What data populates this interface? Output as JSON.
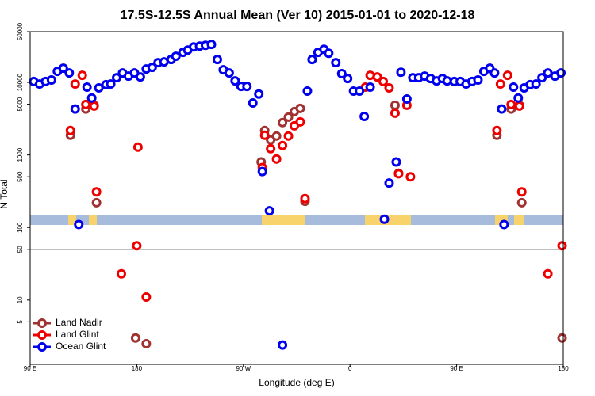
{
  "chart_data": {
    "type": "scatter",
    "title": "17.5S-12.5S Annual Mean (Ver 10)   2015-01-01 to 2020-12-18",
    "x_label": "Longitude (deg E)",
    "y_label": "N Total",
    "xlim": [
      90,
      540
    ],
    "xticks": [
      {
        "value": 90,
        "label": "90 E"
      },
      180,
      {
        "value": 270,
        "label": "90 W"
      },
      {
        "value": 360,
        "label": "0"
      },
      {
        "value": 450,
        "label": "90 E"
      },
      {
        "value": 540,
        "label": "180"
      }
    ],
    "ylim": [
      1.3,
      50000
    ],
    "y_scale": "log",
    "yticks": [
      5,
      10,
      50,
      100,
      500,
      1000,
      5000,
      10000,
      50000
    ],
    "reference_line": 50,
    "legend": "lower left",
    "series": [
      {
        "name": "Land Nadir",
        "color": "#a03232",
        "x": [
          124,
          137,
          144,
          146,
          179,
          188,
          285,
          288,
          293,
          298,
          303,
          308,
          313,
          318,
          322,
          398,
          401,
          484,
          496,
          503,
          505,
          539
        ],
        "values": [
          1870,
          4300,
          4840,
          220,
          3.0,
          2.5,
          800,
          2170,
          1610,
          1820,
          2790,
          3320,
          3960,
          4380,
          230,
          4840,
          560,
          1870,
          4300,
          4840,
          220,
          3.0
        ]
      },
      {
        "name": "Land Glint",
        "color": "#ee0000",
        "x": [
          124,
          128,
          134,
          137,
          144,
          146,
          167,
          180,
          181,
          188,
          286,
          288,
          293,
          298,
          303,
          308,
          313,
          318,
          322,
          373,
          377,
          383,
          388,
          393,
          398,
          401,
          408,
          411,
          484,
          487,
          493,
          496,
          503,
          505,
          527,
          539
        ],
        "values": [
          2170,
          9500,
          12500,
          4970,
          4720,
          310,
          23,
          56,
          1280,
          11,
          670,
          1870,
          1220,
          880,
          1350,
          1820,
          2520,
          2860,
          250,
          8600,
          12500,
          11900,
          10300,
          8400,
          3770,
          550,
          4840,
          500,
          2170,
          9500,
          12500,
          4970,
          4720,
          310,
          23,
          56
        ]
      },
      {
        "name": "Ocean Glint",
        "color": "#0000ee",
        "x": [
          93,
          98,
          103,
          108,
          113,
          118,
          123,
          128,
          131,
          138,
          142,
          148,
          154,
          158,
          163,
          168,
          173,
          178,
          183,
          188,
          193,
          198,
          203,
          209,
          213,
          219,
          223,
          228,
          233,
          238,
          243,
          248,
          253,
          258,
          263,
          268,
          273,
          278,
          283,
          286,
          292,
          303,
          324,
          328,
          333,
          338,
          342,
          348,
          353,
          358,
          363,
          368,
          372,
          377,
          389,
          393,
          399,
          403,
          408,
          413,
          418,
          423,
          428,
          433,
          438,
          442,
          448,
          453,
          458,
          463,
          468,
          473,
          478,
          482,
          488,
          490,
          498,
          502,
          507,
          512,
          517,
          522,
          527,
          533,
          538
        ],
        "values": [
          10300,
          9500,
          10300,
          10800,
          14200,
          15700,
          13500,
          4300,
          110,
          8600,
          6100,
          8400,
          9300,
          9500,
          11600,
          13500,
          12200,
          13500,
          11900,
          15300,
          16100,
          18700,
          19200,
          20700,
          22900,
          25900,
          27900,
          30800,
          31600,
          32400,
          33300,
          20700,
          14900,
          13500,
          10500,
          8800,
          8800,
          5200,
          6900,
          590,
          170,
          2.4,
          7600,
          20700,
          25900,
          28600,
          25200,
          18700,
          13200,
          11300,
          7600,
          7600,
          3400,
          8600,
          130,
          410,
          800,
          13800,
          5900,
          11600,
          11600,
          12200,
          11300,
          10500,
          11300,
          10500,
          10300,
          10300,
          9500,
          10300,
          10800,
          14200,
          15700,
          13500,
          4300,
          110,
          8600,
          6100,
          8400,
          9300,
          9500,
          11600,
          13500,
          12200,
          13500
        ]
      }
    ]
  }
}
